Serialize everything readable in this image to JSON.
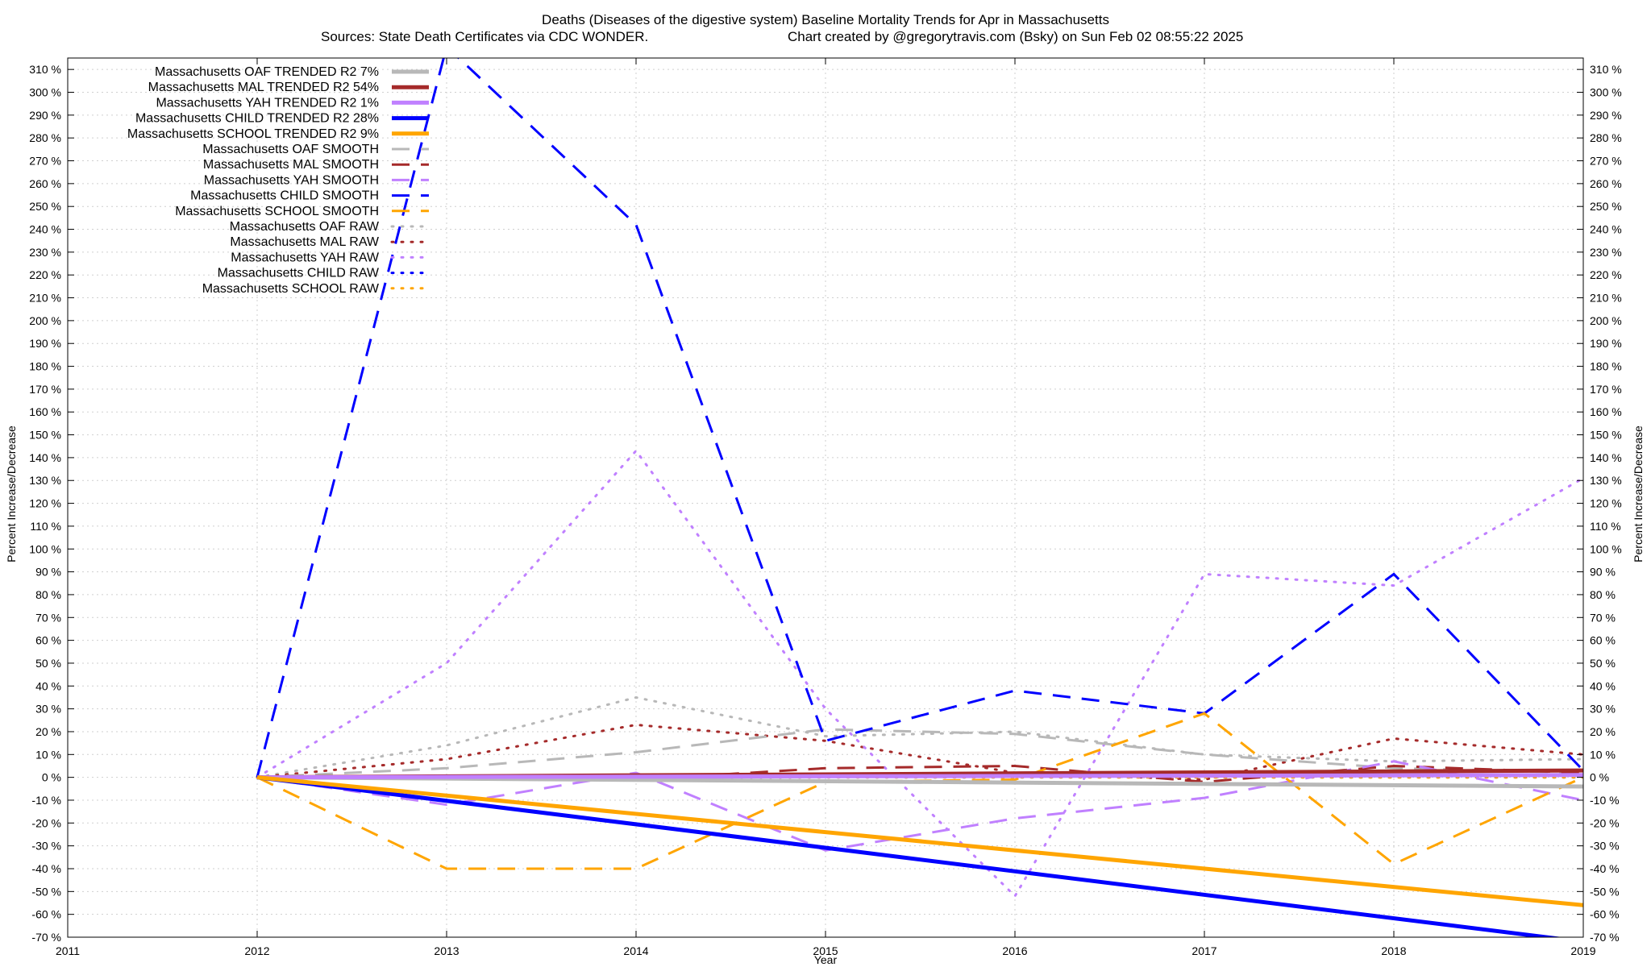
{
  "chart_data": {
    "type": "line",
    "title_line1": "Deaths (Diseases of the digestive system)  Baseline Mortality Trends for Apr in Massachusetts",
    "title_line2_left": "Sources: State Death Certificates via CDC WONDER.",
    "title_line2_right": "Chart created by @gregorytravis.com (Bsky) on Sun Feb 02 08:55:22 2025",
    "xlabel": "Year",
    "ylabel": "Percent Increase/Decrease",
    "ylabel_right": "Percent Increase/Decrease",
    "xlim": [
      2011,
      2019
    ],
    "ylim": [
      -70,
      315
    ],
    "x_ticks": [
      2011,
      2012,
      2013,
      2014,
      2015,
      2016,
      2017,
      2018,
      2019
    ],
    "y_ticks": [
      -70,
      -60,
      -50,
      -40,
      -30,
      -20,
      -10,
      0,
      10,
      20,
      30,
      40,
      50,
      60,
      70,
      80,
      90,
      100,
      110,
      120,
      130,
      140,
      150,
      160,
      170,
      180,
      190,
      200,
      210,
      220,
      230,
      240,
      250,
      260,
      270,
      280,
      290,
      300,
      310
    ],
    "y_tick_suffix": " %",
    "grid": true,
    "legend_position": "top-left",
    "series": [
      {
        "name": "Massachusetts OAF TRENDED R2  7%",
        "style": "trend",
        "color": "#b8b8b8",
        "x": [
          2012,
          2019
        ],
        "values": [
          0,
          -4
        ]
      },
      {
        "name": "Massachusetts MAL TRENDED R2  54%",
        "style": "trend",
        "color": "#a52a2a",
        "x": [
          2012,
          2019
        ],
        "values": [
          0,
          3
        ]
      },
      {
        "name": "Massachusetts YAH TRENDED R2  1%",
        "style": "trend",
        "color": "#c080ff",
        "x": [
          2012,
          2019
        ],
        "values": [
          0,
          1
        ]
      },
      {
        "name": "Massachusetts CHILD TRENDED R2  28%",
        "style": "trend",
        "color": "#0000ff",
        "x": [
          2012,
          2019
        ],
        "values": [
          0,
          -72
        ]
      },
      {
        "name": "Massachusetts SCHOOL TRENDED R2  9%",
        "style": "trend",
        "color": "#ffa500",
        "x": [
          2012,
          2019
        ],
        "values": [
          0,
          -56
        ]
      },
      {
        "name": "Massachusetts OAF SMOOTH",
        "style": "smooth",
        "color": "#b8b8b8",
        "x": [
          2012,
          2013,
          2014,
          2015,
          2016,
          2017,
          2018,
          2019
        ],
        "values": [
          0,
          4,
          11,
          21,
          19,
          10,
          4,
          2
        ]
      },
      {
        "name": "Massachusetts MAL SMOOTH",
        "style": "smooth",
        "color": "#a52a2a",
        "x": [
          2012,
          2013,
          2014,
          2015,
          2016,
          2017,
          2018,
          2019
        ],
        "values": [
          0,
          0,
          -1,
          4,
          5,
          -2,
          5,
          2
        ]
      },
      {
        "name": "Massachusetts YAH SMOOTH",
        "style": "smooth",
        "color": "#c080ff",
        "x": [
          2012,
          2013,
          2014,
          2015,
          2016,
          2017,
          2018,
          2019
        ],
        "values": [
          0,
          -12,
          2,
          -32,
          -18,
          -9,
          7,
          -10
        ]
      },
      {
        "name": "Massachusetts CHILD SMOOTH",
        "style": "smooth",
        "color": "#0000ff",
        "x": [
          2012,
          2013,
          2014,
          2015,
          2016,
          2017,
          2018,
          2019
        ],
        "values": [
          0,
          320,
          242,
          16,
          38,
          28,
          89,
          3
        ]
      },
      {
        "name": "Massachusetts SCHOOL SMOOTH",
        "style": "smooth",
        "color": "#ffa500",
        "x": [
          2012,
          2013,
          2014,
          2015,
          2016,
          2017,
          2018,
          2019
        ],
        "values": [
          0,
          -40,
          -40,
          -2,
          -1,
          28,
          -38,
          0
        ]
      },
      {
        "name": "Massachusetts OAF RAW",
        "style": "raw",
        "color": "#b8b8b8",
        "x": [
          2012,
          2013,
          2014,
          2015,
          2016,
          2017,
          2018,
          2019
        ],
        "values": [
          0,
          14,
          35,
          18,
          20,
          10,
          7,
          8
        ]
      },
      {
        "name": "Massachusetts MAL RAW",
        "style": "raw",
        "color": "#a52a2a",
        "x": [
          2012,
          2013,
          2014,
          2015,
          2016,
          2017,
          2018,
          2019
        ],
        "values": [
          0,
          8,
          23,
          16,
          2,
          -1,
          17,
          10
        ]
      },
      {
        "name": "Massachusetts YAH RAW",
        "style": "raw",
        "color": "#c080ff",
        "x": [
          2012,
          2013,
          2014,
          2015,
          2016,
          2017,
          2018,
          2019
        ],
        "values": [
          0,
          50,
          143,
          30,
          -52,
          89,
          84,
          131
        ]
      },
      {
        "name": "Massachusetts CHILD RAW",
        "style": "raw",
        "color": "#0000ff",
        "x": [
          2012,
          2013,
          2014,
          2015,
          2016,
          2017,
          2018,
          2019
        ],
        "values": [
          0,
          0,
          0,
          0,
          0,
          0,
          0,
          0
        ]
      },
      {
        "name": "Massachusetts SCHOOL RAW",
        "style": "raw",
        "color": "#ffa500",
        "x": [
          2012,
          2013,
          2014,
          2015,
          2016,
          2017,
          2018,
          2019
        ],
        "values": [
          0,
          0,
          0,
          0,
          0,
          0,
          0,
          0
        ]
      }
    ]
  }
}
